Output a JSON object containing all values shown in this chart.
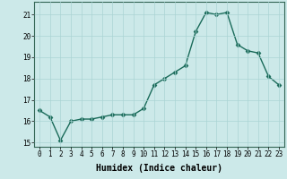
{
  "x": [
    0,
    1,
    2,
    3,
    4,
    5,
    6,
    7,
    8,
    9,
    10,
    11,
    12,
    13,
    14,
    15,
    16,
    17,
    18,
    19,
    20,
    21,
    22,
    23
  ],
  "y": [
    16.5,
    16.2,
    15.1,
    16.0,
    16.1,
    16.1,
    16.2,
    16.3,
    16.3,
    16.3,
    16.6,
    17.7,
    18.0,
    18.3,
    18.6,
    20.2,
    21.1,
    21.0,
    21.1,
    19.6,
    19.3,
    19.2,
    18.1,
    17.7
  ],
  "line_color": "#1a6b5a",
  "marker": "D",
  "marker_size": 2.5,
  "bg_color": "#cce9e9",
  "grid_color": "#aad4d4",
  "xlabel": "Humidex (Indice chaleur)",
  "ylim": [
    14.8,
    21.6
  ],
  "yticks": [
    15,
    16,
    17,
    18,
    19,
    20,
    21
  ],
  "ytick_labels": [
    "15",
    "16",
    "17",
    "18",
    "19",
    "20",
    "21"
  ],
  "xticks": [
    0,
    1,
    2,
    3,
    4,
    5,
    6,
    7,
    8,
    9,
    10,
    11,
    12,
    13,
    14,
    15,
    16,
    17,
    18,
    19,
    20,
    21,
    22,
    23
  ],
  "tick_fontsize": 5.5,
  "label_fontsize": 7,
  "linewidth": 1.0
}
